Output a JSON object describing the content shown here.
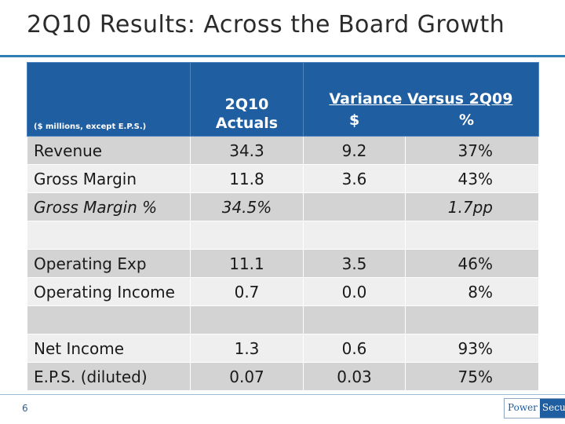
{
  "slide": {
    "title": "2Q10 Results:  Across the Board Growth",
    "page_number": "6",
    "logo": {
      "part1": "Power",
      "part2": "Secure"
    }
  },
  "table": {
    "note": "($ millions, except E.P.S.)",
    "col_actuals_line1": "2Q10",
    "col_actuals_line2": "Actuals",
    "variance_title": "Variance Versus 2Q09",
    "variance_dollar": "$",
    "variance_pct": "%",
    "rows": [
      {
        "label": "Revenue",
        "actual": "34.3",
        "dollar": "9.2",
        "pct": "37%"
      },
      {
        "label": "Gross Margin",
        "actual": "11.8",
        "dollar": "3.6",
        "pct": "43%"
      },
      {
        "label": "Gross Margin %",
        "actual": "34.5%",
        "dollar": "",
        "pct": "1.7pp"
      },
      {
        "label": "",
        "actual": "",
        "dollar": "",
        "pct": ""
      },
      {
        "label": "Operating Exp",
        "actual": "11.1",
        "dollar": "3.5",
        "pct": "46%"
      },
      {
        "label": "Operating Income",
        "actual": "0.7",
        "dollar": "0.0",
        "pct": "8%"
      },
      {
        "label": "",
        "actual": "",
        "dollar": "",
        "pct": ""
      },
      {
        "label": "Net Income",
        "actual": "1.3",
        "dollar": "0.6",
        "pct": "93%"
      },
      {
        "label": "E.P.S. (diluted)",
        "actual": "0.07",
        "dollar": "0.03",
        "pct": "75%"
      }
    ]
  }
}
